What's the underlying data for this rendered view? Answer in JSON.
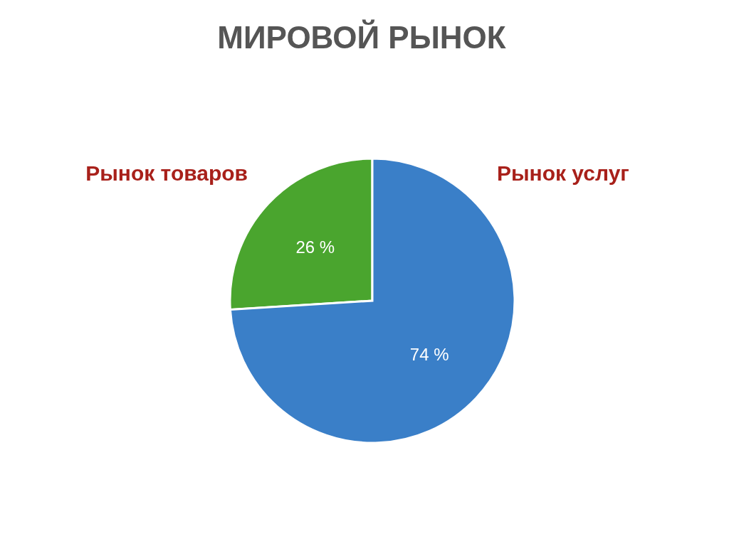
{
  "chart_data": {
    "type": "pie",
    "title": "МИРОВОЙ РЫНОК",
    "categories": [
      "Рынок товаров",
      "Рынок услуг"
    ],
    "values": [
      26,
      74
    ],
    "colors": [
      "#4aa52e",
      "#3a7fc8"
    ],
    "value_labels": [
      "26 %",
      "74 %"
    ],
    "legend": false
  }
}
